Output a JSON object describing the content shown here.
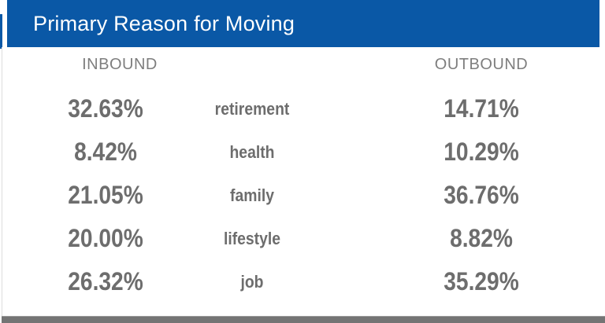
{
  "header": {
    "title": "Primary Reason for Moving"
  },
  "table": {
    "col_inbound": "INBOUND",
    "col_outbound": "OUTBOUND",
    "rows": [
      {
        "inbound": "32.63%",
        "reason": "retirement",
        "outbound": "14.71%"
      },
      {
        "inbound": "8.42%",
        "reason": "health",
        "outbound": "10.29%"
      },
      {
        "inbound": "21.05%",
        "reason": "family",
        "outbound": "36.76%"
      },
      {
        "inbound": "20.00%",
        "reason": "lifestyle",
        "outbound": "8.82%"
      },
      {
        "inbound": "26.32%",
        "reason": "job",
        "outbound": "35.29%"
      }
    ]
  },
  "chart_data": {
    "type": "table",
    "title": "Primary Reason for Moving",
    "categories": [
      "retirement",
      "health",
      "family",
      "lifestyle",
      "job"
    ],
    "series": [
      {
        "name": "INBOUND",
        "values": [
          32.63,
          8.42,
          21.05,
          20.0,
          26.32
        ]
      },
      {
        "name": "OUTBOUND",
        "values": [
          14.71,
          10.29,
          36.76,
          8.82,
          35.29
        ]
      }
    ],
    "value_format": "percent",
    "legend_position": "column-headers",
    "grid": false
  },
  "colors": {
    "header_bg": "#0A58A6",
    "title_text": "#FFFFFF",
    "column_header_text": "#7E7E7E",
    "value_text": "#6D6D6D",
    "footer_bar": "#747474",
    "left_hairline": "#DCDCDC"
  }
}
